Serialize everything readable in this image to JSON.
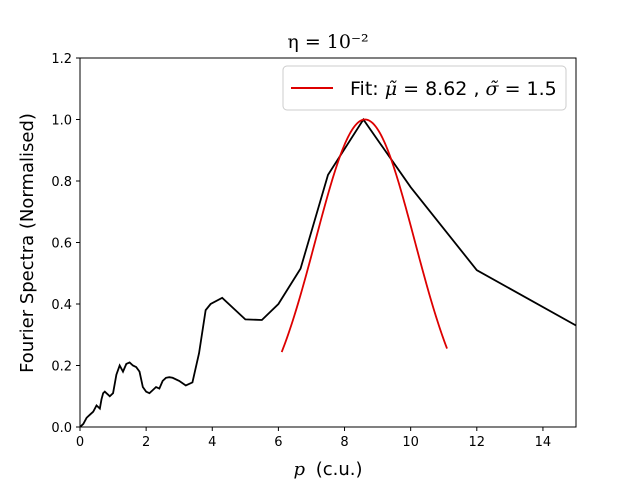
{
  "chart_data": {
    "type": "line",
    "title": "η = 10⁻²",
    "xlabel_var": "p",
    "xlabel_unit": "(c.u.)",
    "ylabel": "Fourier Spectra (Normalised)",
    "xlim": [
      0,
      15
    ],
    "ylim": [
      0,
      1.2
    ],
    "xticks": [
      0,
      2,
      4,
      6,
      8,
      10,
      12,
      14
    ],
    "yticks": [
      0.0,
      0.2,
      0.4,
      0.6,
      0.8,
      1.0,
      1.2
    ],
    "xtick_labels": [
      "0",
      "2",
      "4",
      "6",
      "8",
      "10",
      "12",
      "14"
    ],
    "ytick_labels": [
      "0.0",
      "0.2",
      "0.4",
      "0.6",
      "0.8",
      "1.0",
      "1.2"
    ],
    "legend_position": "top-right",
    "series": [
      {
        "color": "#000000",
        "x": [
          0.0,
          0.1,
          0.2,
          0.3,
          0.4,
          0.5,
          0.55,
          0.6,
          0.65,
          0.7,
          0.75,
          0.8,
          0.85,
          0.9,
          1.0,
          1.1,
          1.2,
          1.3,
          1.4,
          1.5,
          1.6,
          1.7,
          1.8,
          1.9,
          2.0,
          2.1,
          2.2,
          2.3,
          2.4,
          2.5,
          2.6,
          2.7,
          2.8,
          3.0,
          3.2,
          3.4,
          3.6,
          3.8,
          3.95,
          4.3,
          5.0,
          5.5,
          6.0,
          6.67,
          7.5,
          8.57,
          10.0,
          12.0,
          15.0
        ],
        "y": [
          0.0,
          0.01,
          0.03,
          0.04,
          0.05,
          0.07,
          0.065,
          0.06,
          0.09,
          0.11,
          0.115,
          0.11,
          0.105,
          0.1,
          0.11,
          0.17,
          0.2,
          0.18,
          0.205,
          0.21,
          0.2,
          0.195,
          0.18,
          0.13,
          0.115,
          0.11,
          0.12,
          0.13,
          0.125,
          0.15,
          0.16,
          0.162,
          0.16,
          0.15,
          0.135,
          0.145,
          0.24,
          0.38,
          0.4,
          0.42,
          0.35,
          0.348,
          0.4,
          0.515,
          0.82,
          1.0,
          0.78,
          0.51,
          0.33
        ]
      },
      {
        "name": "Fit",
        "color": "#dd0000",
        "type": "gaussian",
        "mu": 8.62,
        "sigma": 1.5,
        "x_range": [
          6.1,
          11.1
        ]
      }
    ]
  },
  "legend": {
    "prefix": "Fit: ",
    "mu_symbol": "μ̃",
    "mu_value": "8.62",
    "sigma_symbol": "σ̃",
    "sigma_value": "1.5"
  },
  "colors": {
    "data_line": "#000000",
    "fit_line": "#dd0000"
  }
}
